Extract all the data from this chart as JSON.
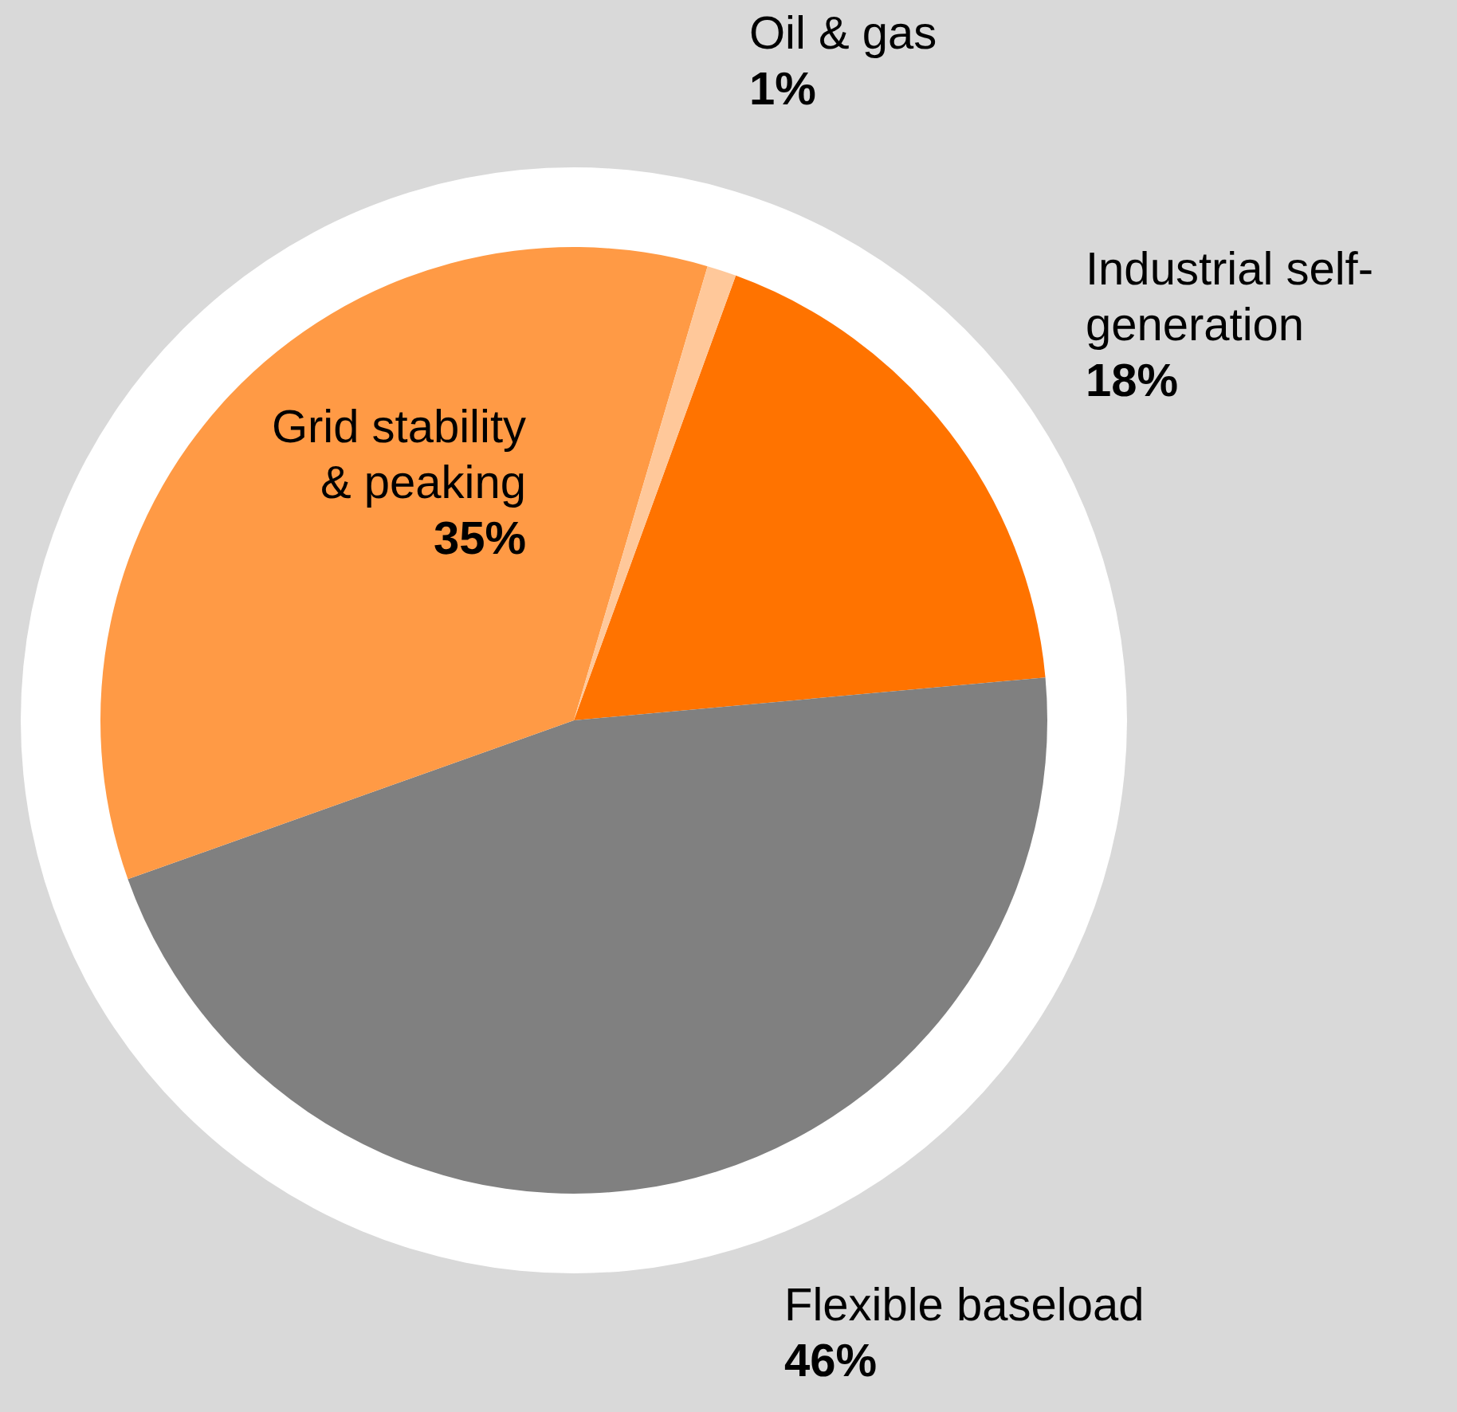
{
  "chart_data": {
    "type": "pie",
    "categories": [
      "Industrial self-generation",
      "Flexible baseload",
      "Grid stability & peaking",
      "Oil & gas"
    ],
    "values": [
      18,
      46,
      35,
      1
    ],
    "colors": [
      "#ff7300",
      "#808080",
      "#ff9a45",
      "#ffc89a"
    ],
    "value_labels": [
      "18%",
      "46%",
      "35%",
      "1%"
    ],
    "legend": false
  }
}
